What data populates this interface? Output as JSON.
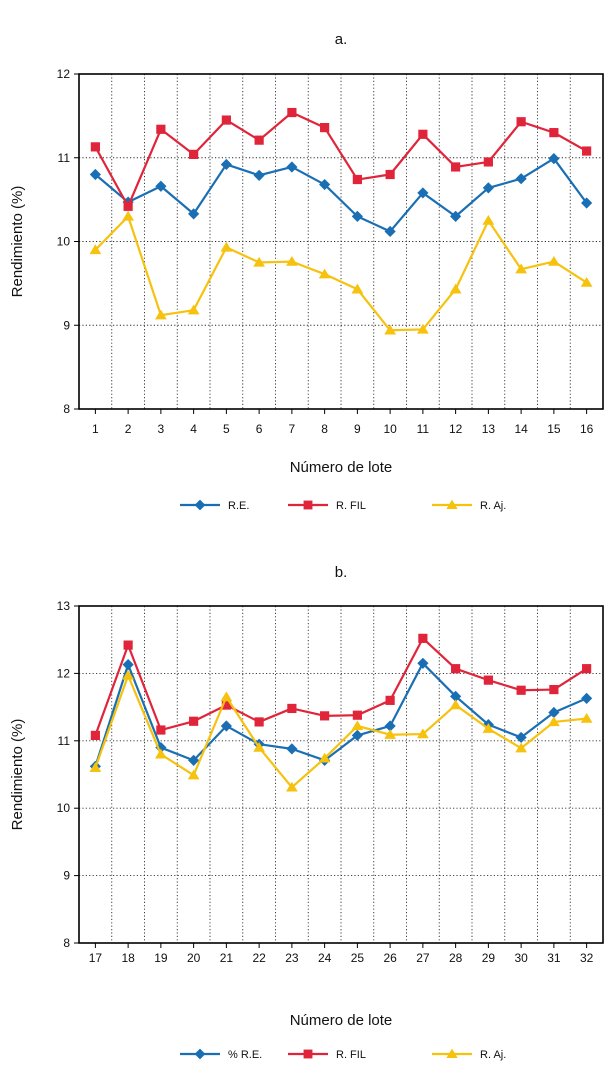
{
  "chart_data": [
    {
      "type": "line",
      "title": "a.",
      "xlabel": "Número de lote",
      "ylabel": "Rendimiento (%)",
      "categories": [
        "1",
        "2",
        "3",
        "4",
        "5",
        "6",
        "7",
        "8",
        "9",
        "10",
        "11",
        "12",
        "13",
        "14",
        "15",
        "16"
      ],
      "ylim": [
        8,
        12
      ],
      "yticks": [
        "8",
        "9",
        "10",
        "11",
        "12"
      ],
      "grid": true,
      "legend_position": "bottom",
      "series": [
        {
          "name": "R.E.",
          "color": "#1a6fb4",
          "marker": "diamond",
          "values": [
            10.8,
            10.47,
            10.66,
            10.33,
            10.92,
            10.79,
            10.89,
            10.68,
            10.3,
            10.12,
            10.58,
            10.3,
            10.64,
            10.75,
            10.99,
            10.46
          ]
        },
        {
          "name": "R. FIL",
          "color": "#e0243a",
          "marker": "square",
          "values": [
            11.13,
            10.42,
            11.34,
            11.04,
            11.45,
            11.21,
            11.54,
            11.36,
            10.74,
            10.8,
            11.28,
            10.89,
            10.95,
            11.43,
            11.3,
            11.08
          ]
        },
        {
          "name": "R. Aj.",
          "color": "#f6c20e",
          "marker": "triangle",
          "values": [
            9.9,
            10.3,
            9.12,
            9.18,
            9.93,
            9.75,
            9.76,
            9.61,
            9.43,
            8.94,
            8.95,
            9.43,
            10.25,
            9.67,
            9.76,
            9.51
          ]
        }
      ]
    },
    {
      "type": "line",
      "title": "b.",
      "xlabel": "Número de lote",
      "ylabel": "Rendimiento (%)",
      "categories": [
        "17",
        "18",
        "19",
        "20",
        "21",
        "22",
        "23",
        "24",
        "25",
        "26",
        "27",
        "28",
        "29",
        "30",
        "31",
        "32"
      ],
      "ylim": [
        8,
        13
      ],
      "yticks": [
        "8",
        "9",
        "10",
        "11",
        "12",
        "13"
      ],
      "grid": true,
      "legend_position": "bottom",
      "series": [
        {
          "name": "% R.E.",
          "color": "#1a6fb4",
          "marker": "diamond",
          "values": [
            10.62,
            12.13,
            10.9,
            10.71,
            11.22,
            10.95,
            10.88,
            10.71,
            11.08,
            11.22,
            12.15,
            11.66,
            11.24,
            11.05,
            11.42,
            11.63
          ]
        },
        {
          "name": "R. FIL",
          "color": "#e0243a",
          "marker": "square",
          "values": [
            11.08,
            12.42,
            11.16,
            11.29,
            11.53,
            11.28,
            11.48,
            11.37,
            11.38,
            11.6,
            12.52,
            12.07,
            11.9,
            11.75,
            11.76,
            12.07
          ]
        },
        {
          "name": "R. Aj.",
          "color": "#f6c20e",
          "marker": "triangle",
          "values": [
            10.6,
            11.97,
            10.8,
            10.49,
            11.65,
            10.9,
            10.31,
            10.74,
            11.22,
            11.09,
            11.1,
            11.53,
            11.18,
            10.89,
            11.28,
            11.33
          ]
        }
      ]
    }
  ]
}
